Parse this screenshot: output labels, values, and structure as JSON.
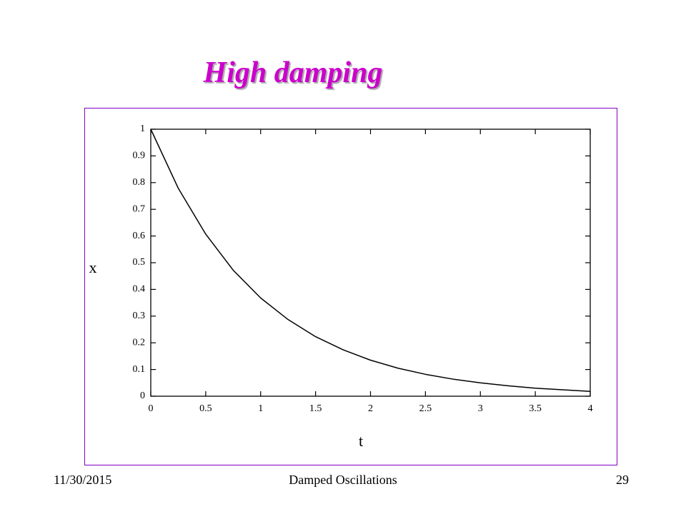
{
  "chart_data": {
    "type": "line",
    "title": "High damping",
    "x_label": "t",
    "y_label": "x",
    "x": [
      0,
      0.25,
      0.5,
      0.75,
      1,
      1.25,
      1.5,
      1.75,
      2,
      2.25,
      2.5,
      2.75,
      3,
      3.25,
      3.5,
      3.75,
      4
    ],
    "values": [
      1,
      0.779,
      0.607,
      0.472,
      0.368,
      0.287,
      0.223,
      0.174,
      0.135,
      0.105,
      0.082,
      0.064,
      0.05,
      0.039,
      0.03,
      0.024,
      0.018
    ],
    "color": "#000000",
    "xlim": [
      0,
      4
    ],
    "xticks": [
      0,
      0.5,
      1,
      1.5,
      2,
      2.5,
      3,
      3.5,
      4
    ],
    "ylim": [
      0,
      1
    ],
    "yticks": [
      0,
      0.1,
      0.2,
      0.3,
      0.4,
      0.5,
      0.6,
      0.7,
      0.8,
      0.9,
      1
    ],
    "grid": false
  },
  "footer": {
    "date": "11/30/2015",
    "center": "Damped Oscillations",
    "page": "29"
  }
}
